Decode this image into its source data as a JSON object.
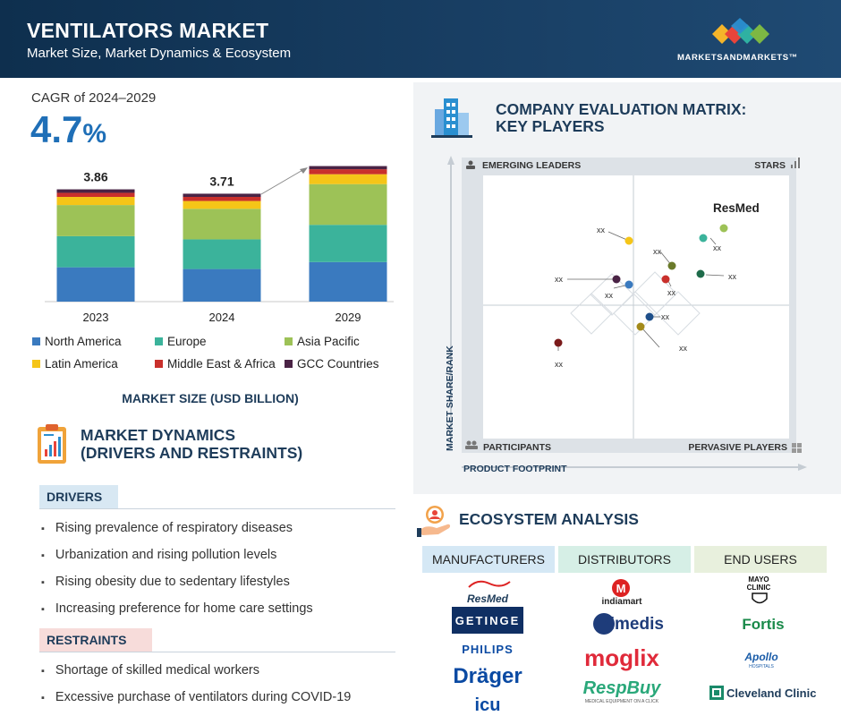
{
  "header": {
    "title": "VENTILATORS MARKET",
    "subtitle": "Market Size, Market Dynamics & Ecosystem",
    "brand": "MARKETSANDMARKETS™"
  },
  "cagr": {
    "label": "CAGR of 2024–2029",
    "value": "4.7",
    "unit": "%"
  },
  "chart_data": {
    "type": "bar",
    "stacked": true,
    "categories": [
      "2023",
      "2024",
      "2029"
    ],
    "totals": [
      "3.86",
      "3.71",
      "4.66"
    ],
    "series": [
      {
        "name": "North America",
        "color": "#3a7abf",
        "values": [
          1.18,
          1.12,
          1.36
        ]
      },
      {
        "name": "Europe",
        "color": "#3bb39b",
        "values": [
          1.07,
          1.02,
          1.28
        ]
      },
      {
        "name": "Asia Pacific",
        "color": "#9dc257",
        "values": [
          1.07,
          1.05,
          1.4
        ]
      },
      {
        "name": "Latin America",
        "color": "#f5c518",
        "values": [
          0.28,
          0.27,
          0.34
        ]
      },
      {
        "name": "Middle East & Africa",
        "color": "#c9302c",
        "values": [
          0.14,
          0.14,
          0.17
        ]
      },
      {
        "name": "GCC Countries",
        "color": "#4a2345",
        "values": [
          0.12,
          0.11,
          0.11
        ]
      }
    ],
    "xlabel": "MARKET SIZE (USD BILLION)"
  },
  "market_dynamics": {
    "title_line1": "MARKET DYNAMICS",
    "title_line2": "(DRIVERS AND RESTRAINTS)",
    "drivers_label": "DRIVERS",
    "drivers": [
      "Rising prevalence of respiratory diseases",
      "Urbanization and rising pollution levels",
      "Rising obesity due to sedentary lifestyles",
      "Increasing preference for home care settings"
    ],
    "restraints_label": "RESTRAINTS",
    "restraints": [
      "Shortage of skilled medical workers",
      "Excessive purchase of ventilators during COVID-19"
    ]
  },
  "evaluation_matrix": {
    "title_line1": "COMPANY EVALUATION MATRIX:",
    "title_line2": "KEY PLAYERS",
    "quadrants": {
      "top_left": "EMERGING LEADERS",
      "top_right": "STARS",
      "bottom_left": "PARTICIPANTS",
      "bottom_right": "PERVASIVE PLAYERS"
    },
    "y_axis": "MARKET SHARE/RANK",
    "x_axis": "PRODUCT FOOTPRINT",
    "highlight": "ResMed",
    "placeholder_label": "xx"
  },
  "ecosystem": {
    "title": "ECOSYSTEM ANALYSIS",
    "columns": [
      "MANUFACTURERS",
      "DISTRIBUTORS",
      "END USERS"
    ],
    "manufacturers": [
      "ResMed",
      "GETINGE",
      "PHILIPS",
      "Dräger",
      "icu"
    ],
    "distributors": [
      "indiamart",
      "Bimedis",
      "moglix",
      "RespBuy"
    ],
    "distributor_taglines": [
      "",
      "",
      "",
      "MEDICAL EQUIPMENT ON A CLICK"
    ],
    "end_users": [
      "MAYO CLINIC",
      "Fortis",
      "Apollo",
      "Cleveland Clinic"
    ],
    "end_user_subtext": [
      "",
      "",
      "HOSPITALS",
      ""
    ]
  },
  "colors": {
    "header_bg": "#183e63",
    "accent_blue": "#1f6fb7",
    "heading_navy": "#1e3c5a",
    "drivers_tab": "#d8e8f3",
    "restraints_tab": "#f7dcda"
  }
}
